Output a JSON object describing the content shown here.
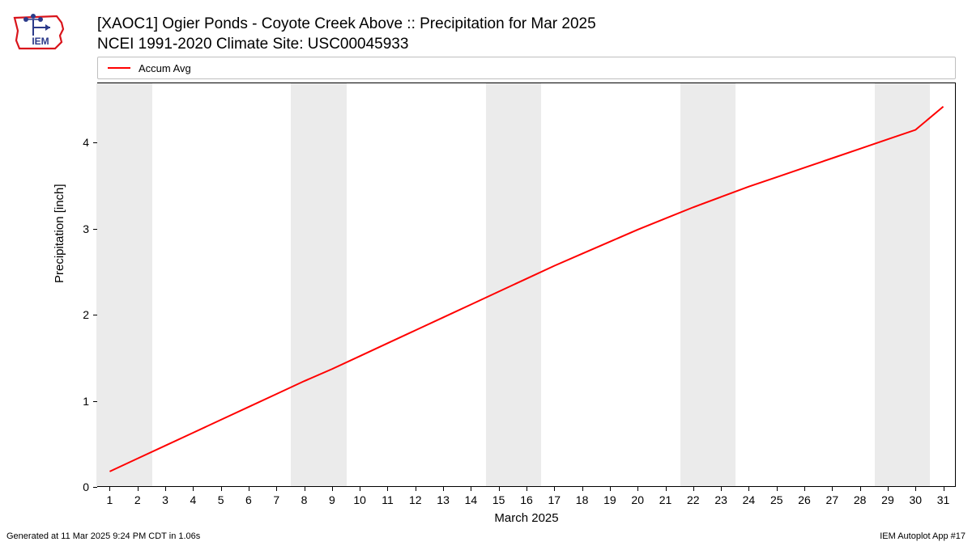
{
  "logo": {
    "label": "IEM",
    "color1": "#d9141b",
    "color2": "#2b3a8a"
  },
  "title": {
    "line1": "[XAOC1] Ogier Ponds - Coyote Creek Above :: Precipitation for Mar 2025",
    "line2": "NCEI 1991-2020 Climate Site: USC00045933"
  },
  "legend": {
    "items": [
      {
        "label": "Accum Avg",
        "color": "#ff0000"
      }
    ]
  },
  "chart": {
    "type": "line",
    "background_color": "#ffffff",
    "band_color": "#ebebeb",
    "line_color": "#ff0000",
    "line_width": 2,
    "x_axis": {
      "label": "March 2025",
      "min": 1,
      "max": 31,
      "ticks": [
        1,
        2,
        3,
        4,
        5,
        6,
        7,
        8,
        9,
        10,
        11,
        12,
        13,
        14,
        15,
        16,
        17,
        18,
        19,
        20,
        21,
        22,
        23,
        24,
        25,
        26,
        27,
        28,
        29,
        30,
        31
      ]
    },
    "y_axis": {
      "label": "Precipitation [inch]",
      "min": 0,
      "max": 4.7,
      "ticks": [
        0,
        1,
        2,
        3,
        4
      ]
    },
    "weekend_bands": [
      [
        1,
        2
      ],
      [
        8,
        9
      ],
      [
        15,
        16
      ],
      [
        22,
        23
      ],
      [
        29,
        30
      ]
    ],
    "series": [
      {
        "name": "Accum Avg",
        "x": [
          1,
          2,
          3,
          4,
          5,
          6,
          7,
          8,
          9,
          10,
          11,
          12,
          13,
          14,
          15,
          16,
          17,
          18,
          19,
          20,
          21,
          22,
          23,
          24,
          25,
          26,
          27,
          28,
          29,
          30,
          31
        ],
        "y": [
          0.18,
          0.33,
          0.48,
          0.63,
          0.78,
          0.93,
          1.08,
          1.23,
          1.37,
          1.52,
          1.67,
          1.82,
          1.97,
          2.12,
          2.27,
          2.42,
          2.57,
          2.71,
          2.85,
          2.99,
          3.12,
          3.25,
          3.37,
          3.49,
          3.6,
          3.71,
          3.82,
          3.93,
          4.04,
          4.15,
          4.42
        ]
      }
    ]
  },
  "footer": {
    "left": "Generated at 11 Mar 2025 9:24 PM CDT in 1.06s",
    "right": "IEM Autoplot App #17"
  }
}
